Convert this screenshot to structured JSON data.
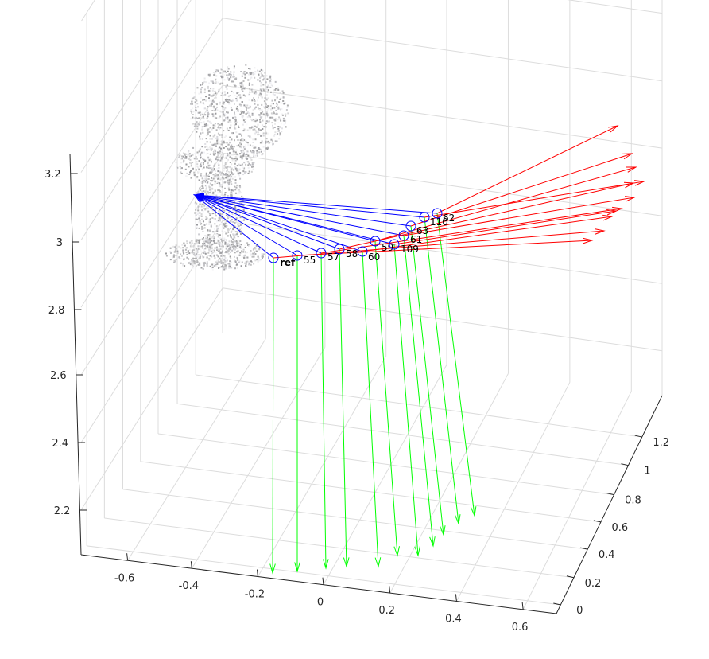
{
  "chart_data": {
    "type": "3d-scatter",
    "grid": true,
    "legend": "none",
    "colors": {
      "background": "#ffffff",
      "grid": "#dcdcdc",
      "axis": "#262626",
      "camera_center": "#0000ff",
      "to_object_rays": "#0000ff",
      "optical_axis": "#ff0000",
      "down_vector": "#00ff00",
      "point_cloud": "#c8c8c8"
    },
    "x_axis": {
      "ticks": [
        "-0.6",
        "-0.4",
        "-0.2",
        "0",
        "0.2",
        "0.4",
        "0.6"
      ]
    },
    "y_axis": {
      "ticks": [
        "0",
        "0.2",
        "0.4",
        "0.6",
        "0.8",
        "1",
        "1.2"
      ]
    },
    "z_axis": {
      "ticks": [
        "2.2",
        "2.4",
        "2.6",
        "2.8",
        "3",
        "3.2"
      ]
    },
    "cameras": [
      {
        "label": "ref"
      },
      {
        "label": "55"
      },
      {
        "label": "57"
      },
      {
        "label": "58"
      },
      {
        "label": "60"
      },
      {
        "label": "59"
      },
      {
        "label": "109"
      },
      {
        "label": "61"
      },
      {
        "label": "63"
      },
      {
        "label": "110"
      },
      {
        "label": "62"
      }
    ]
  }
}
